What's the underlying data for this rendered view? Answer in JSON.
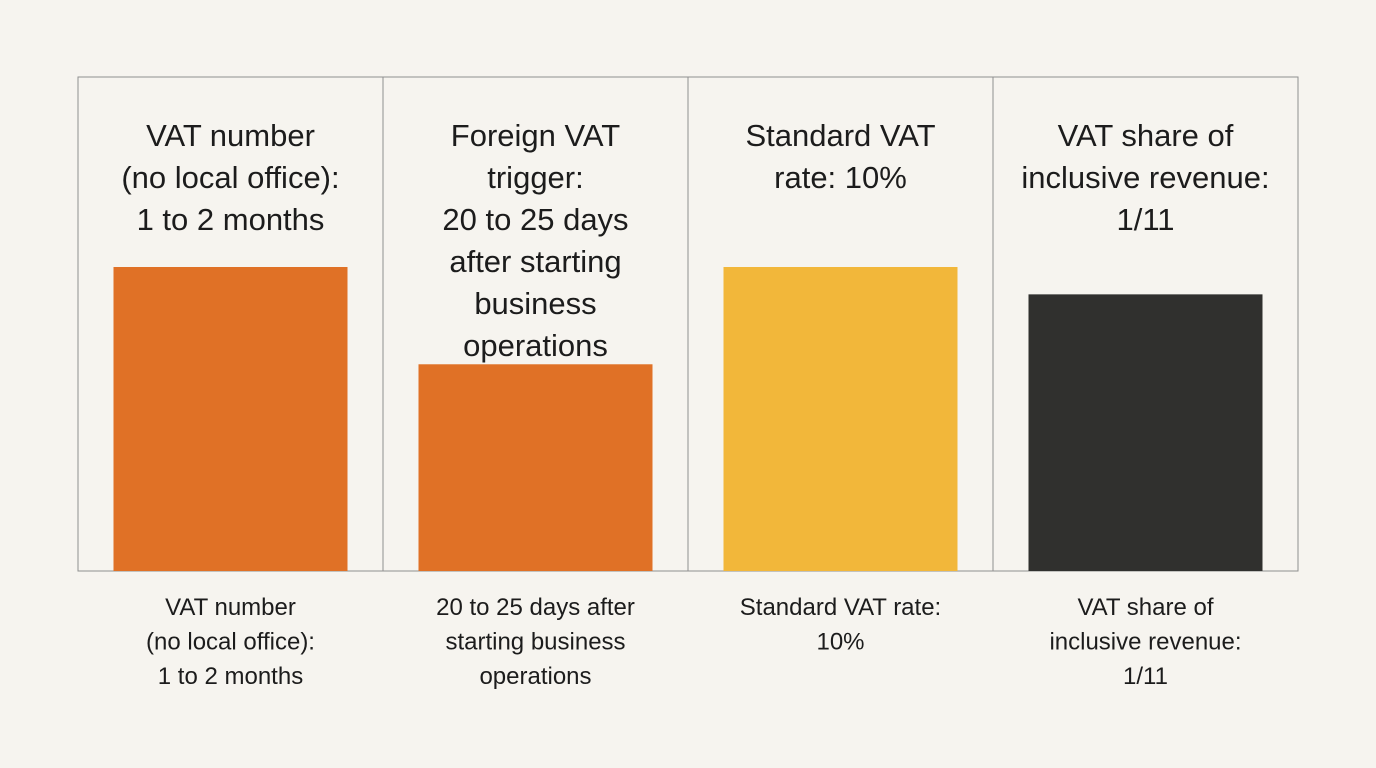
{
  "chart_data": {
    "type": "bar",
    "layout": "small-multiples",
    "grid": false,
    "legend": "none",
    "y_axis_shown": false,
    "panels": [
      {
        "title_lines": [
          "VAT number",
          "(no local office):",
          "1 to 2 months"
        ],
        "label_lines": [
          "VAT number",
          "(no local office):",
          "1 to 2 months"
        ],
        "value": 1.0,
        "color": "#e07126"
      },
      {
        "title_lines": [
          "Foreign VAT",
          "trigger:",
          "20 to 25 days",
          "after starting",
          "business",
          "operations"
        ],
        "label_lines": [
          "20 to 25 days after",
          "starting business",
          "operations"
        ],
        "value": 0.68,
        "color": "#e07126"
      },
      {
        "title_lines": [
          "Standard VAT",
          "rate: 10%"
        ],
        "label_lines": [
          "Standard VAT rate:",
          "10%"
        ],
        "value": 1.0,
        "color": "#f2b73a"
      },
      {
        "title_lines": [
          "VAT share of",
          "inclusive revenue:",
          "1/11"
        ],
        "label_lines": [
          "VAT share of",
          "inclusive revenue:",
          "1/11"
        ],
        "value": 0.91,
        "color": "#30302e"
      }
    ]
  }
}
